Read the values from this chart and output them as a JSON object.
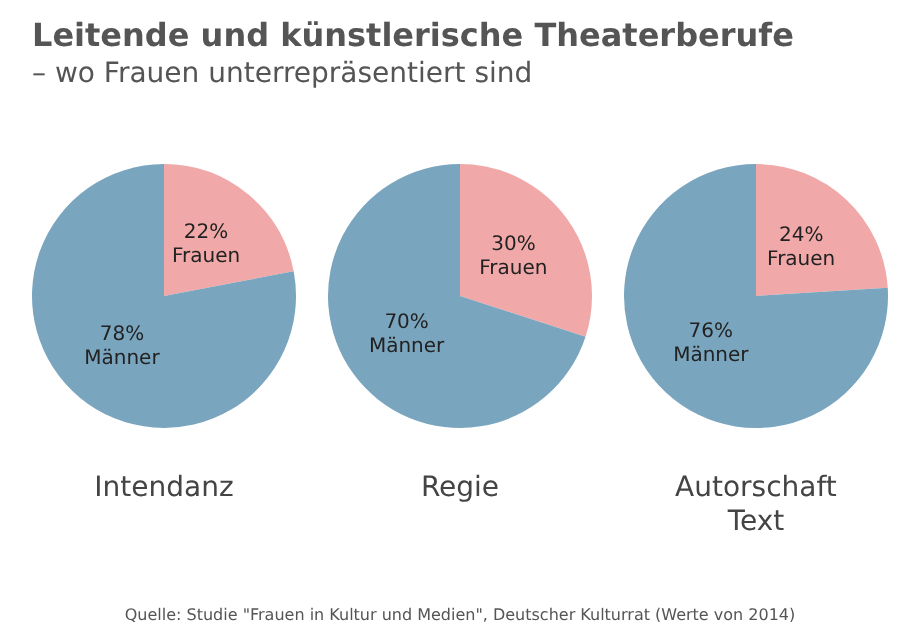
{
  "chart_data": [
    {
      "type": "pie",
      "title": "Leitende und künstlerische Theaterberufe",
      "subtitle": "– wo Frauen unterrepräsentiert sind",
      "xlabel": "Intendanz",
      "categories": [
        "Frauen",
        "Männer"
      ],
      "values": [
        22,
        78
      ],
      "value_labels": [
        "22%",
        "78%"
      ],
      "colors": [
        "#f0a9a8",
        "#7aa5bf"
      ],
      "legend": false
    },
    {
      "type": "pie",
      "xlabel": "Regie",
      "categories": [
        "Frauen",
        "Männer"
      ],
      "values": [
        30,
        70
      ],
      "value_labels": [
        "30%",
        "70%"
      ],
      "colors": [
        "#f0a9a8",
        "#7aa5bf"
      ],
      "legend": false
    },
    {
      "type": "pie",
      "xlabel": "Autorschaft\nText",
      "categories": [
        "Frauen",
        "Männer"
      ],
      "values": [
        24,
        76
      ],
      "value_labels": [
        "24%",
        "76%"
      ],
      "colors": [
        "#f0a9a8",
        "#7aa5bf"
      ],
      "legend": false,
      "annotations": [
        "Quelle: Studie \"Frauen in Kultur und Medien\", Deutscher Kulturrat (Werte von 2014)"
      ]
    }
  ]
}
